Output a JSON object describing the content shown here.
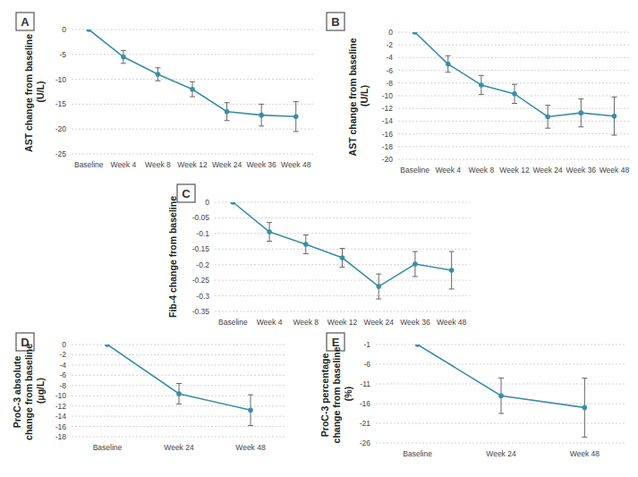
{
  "chart_data": [
    {
      "type": "line",
      "title": "A",
      "ylabel": "AST change from baseline (U/L)",
      "categories": [
        "Baseline",
        "Week 4",
        "Week 8",
        "Week 12",
        "Week 24",
        "Week 36",
        "Week 48"
      ],
      "values": [
        0,
        -5.5,
        -9,
        -12,
        -16.5,
        -17.2,
        -17.5
      ],
      "errors": [
        null,
        1.3,
        1.3,
        1.5,
        1.8,
        2.2,
        3
      ],
      "color": "#3a8ea6",
      "marker": "circle",
      "grid": true,
      "ylim": [
        -25,
        0
      ],
      "yticks": [
        0,
        -5,
        -10,
        -15,
        -20,
        -25
      ]
    },
    {
      "type": "line",
      "title": "B",
      "ylabel": "AST change from baseline (U/L)",
      "categories": [
        "Baseline",
        "Week 4",
        "Week 8",
        "Week 12",
        "Week 24",
        "Week 36",
        "Week 48"
      ],
      "values": [
        0,
        -5,
        -8.3,
        -9.7,
        -13.3,
        -12.7,
        -13.2
      ],
      "errors": [
        null,
        1.3,
        1.5,
        1.5,
        1.8,
        2.2,
        3
      ],
      "color": "#3a8ea6",
      "marker": "circle",
      "grid": true,
      "ylim": [
        -20,
        0
      ],
      "yticks": [
        0,
        -2,
        -4,
        -6,
        -8,
        -10,
        -12,
        -14,
        -16,
        -18,
        -20
      ]
    },
    {
      "type": "line",
      "title": "C",
      "ylabel": "Fib-4 change from baseline",
      "categories": [
        "Baseline",
        "Week 4",
        "Week 8",
        "Week 12",
        "Week 24",
        "Week 36",
        "Week 48"
      ],
      "values": [
        0,
        -0.095,
        -0.135,
        -0.178,
        -0.27,
        -0.198,
        -0.218
      ],
      "errors": [
        null,
        0.03,
        0.03,
        0.03,
        0.04,
        0.04,
        0.06
      ],
      "color": "#3a8ea6",
      "marker": "circle",
      "grid": true,
      "ylim": [
        -0.35,
        0
      ],
      "yticks": [
        0,
        -0.05,
        -0.1,
        -0.15,
        -0.2,
        -0.25,
        -0.3,
        -0.35
      ]
    },
    {
      "type": "line",
      "title": "D",
      "ylabel": "ProC-3 absolute change from baseline (µg/L)",
      "categories": [
        "Baseline",
        "Week 24",
        "Week 48"
      ],
      "values": [
        0,
        -9.6,
        -12.8
      ],
      "errors": [
        null,
        2,
        3
      ],
      "color": "#3a8ea6",
      "marker": "circle",
      "grid": true,
      "ylim": [
        -18,
        0
      ],
      "yticks": [
        0,
        -2,
        -4,
        -6,
        -8,
        -10,
        -12,
        -14,
        -16,
        -18
      ]
    },
    {
      "type": "line",
      "title": "E",
      "ylabel": "ProC-3 percentage change from baseline (%)",
      "categories": [
        "Baseline",
        "Week 24",
        "Week 48"
      ],
      "values": [
        -1,
        -14,
        -17
      ],
      "errors": [
        null,
        4.5,
        7.5
      ],
      "color": "#3a8ea6",
      "marker": "circle",
      "grid": true,
      "ylim": [
        -26,
        -1
      ],
      "yticks": [
        -1,
        -6,
        -11,
        -16,
        -21,
        -26
      ]
    }
  ]
}
